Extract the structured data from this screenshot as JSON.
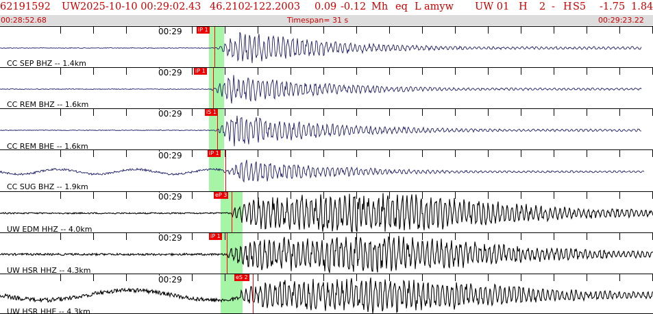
{
  "header": {
    "event_id": "62191592",
    "network": "UW",
    "datetime": "2025-10-10 00:29:02.43",
    "lat": "46.2102",
    "lon": "-122.2003",
    "depth": "0.09",
    "magnitude": "-0.12",
    "mag_type": "Mh",
    "event_type": "eq",
    "location_type": "L",
    "author": "amyw",
    "solution": "UW 01",
    "quality": "H",
    "num": "2",
    "dash": "-",
    "h": "H",
    "s": "S5",
    "val1": "-1.75",
    "val2": "1.84"
  },
  "time_bar": {
    "start": "00:28:52.68",
    "timespan": "Timespan=  31 s",
    "end": "00:29:23.22"
  },
  "colors": {
    "header_text": "#cc0000",
    "time_bar_bg": "#dddddd",
    "pick_box": "#ee0000",
    "pick_line": "#ff0000",
    "window_band": "#a6f5a6",
    "trace_blue": "#1a1a66",
    "trace_black": "#000000"
  },
  "traces": [
    {
      "label": "CC SEP BHZ -- 1.4km",
      "time_label": "00:29",
      "pick": "iP 1",
      "color": "trace_blue"
    },
    {
      "label": "CC REM BHZ -- 1.6km",
      "time_label": "00:29",
      "pick": "iP 1",
      "color": "trace_blue"
    },
    {
      "label": "CC REM BHE -- 1.6km",
      "time_label": "00:29",
      "pick": "iS 1",
      "color": "trace_blue"
    },
    {
      "label": "CC SUG BHZ -- 1.9km",
      "time_label": "00:29",
      "pick": "iP 1",
      "color": "trace_blue"
    },
    {
      "label": "UW EDM HHZ -- 4.0km",
      "time_label": "00:29",
      "pick": "eP 3",
      "color": "trace_black"
    },
    {
      "label": "UW HSR HHZ -- 4.3km",
      "time_label": "00:29",
      "pick": "iP 1",
      "color": "trace_black"
    },
    {
      "label": "UW HSR HHE -- 4.3km",
      "time_label": "00:29",
      "pick": "eS 2",
      "color": "trace_black"
    }
  ]
}
